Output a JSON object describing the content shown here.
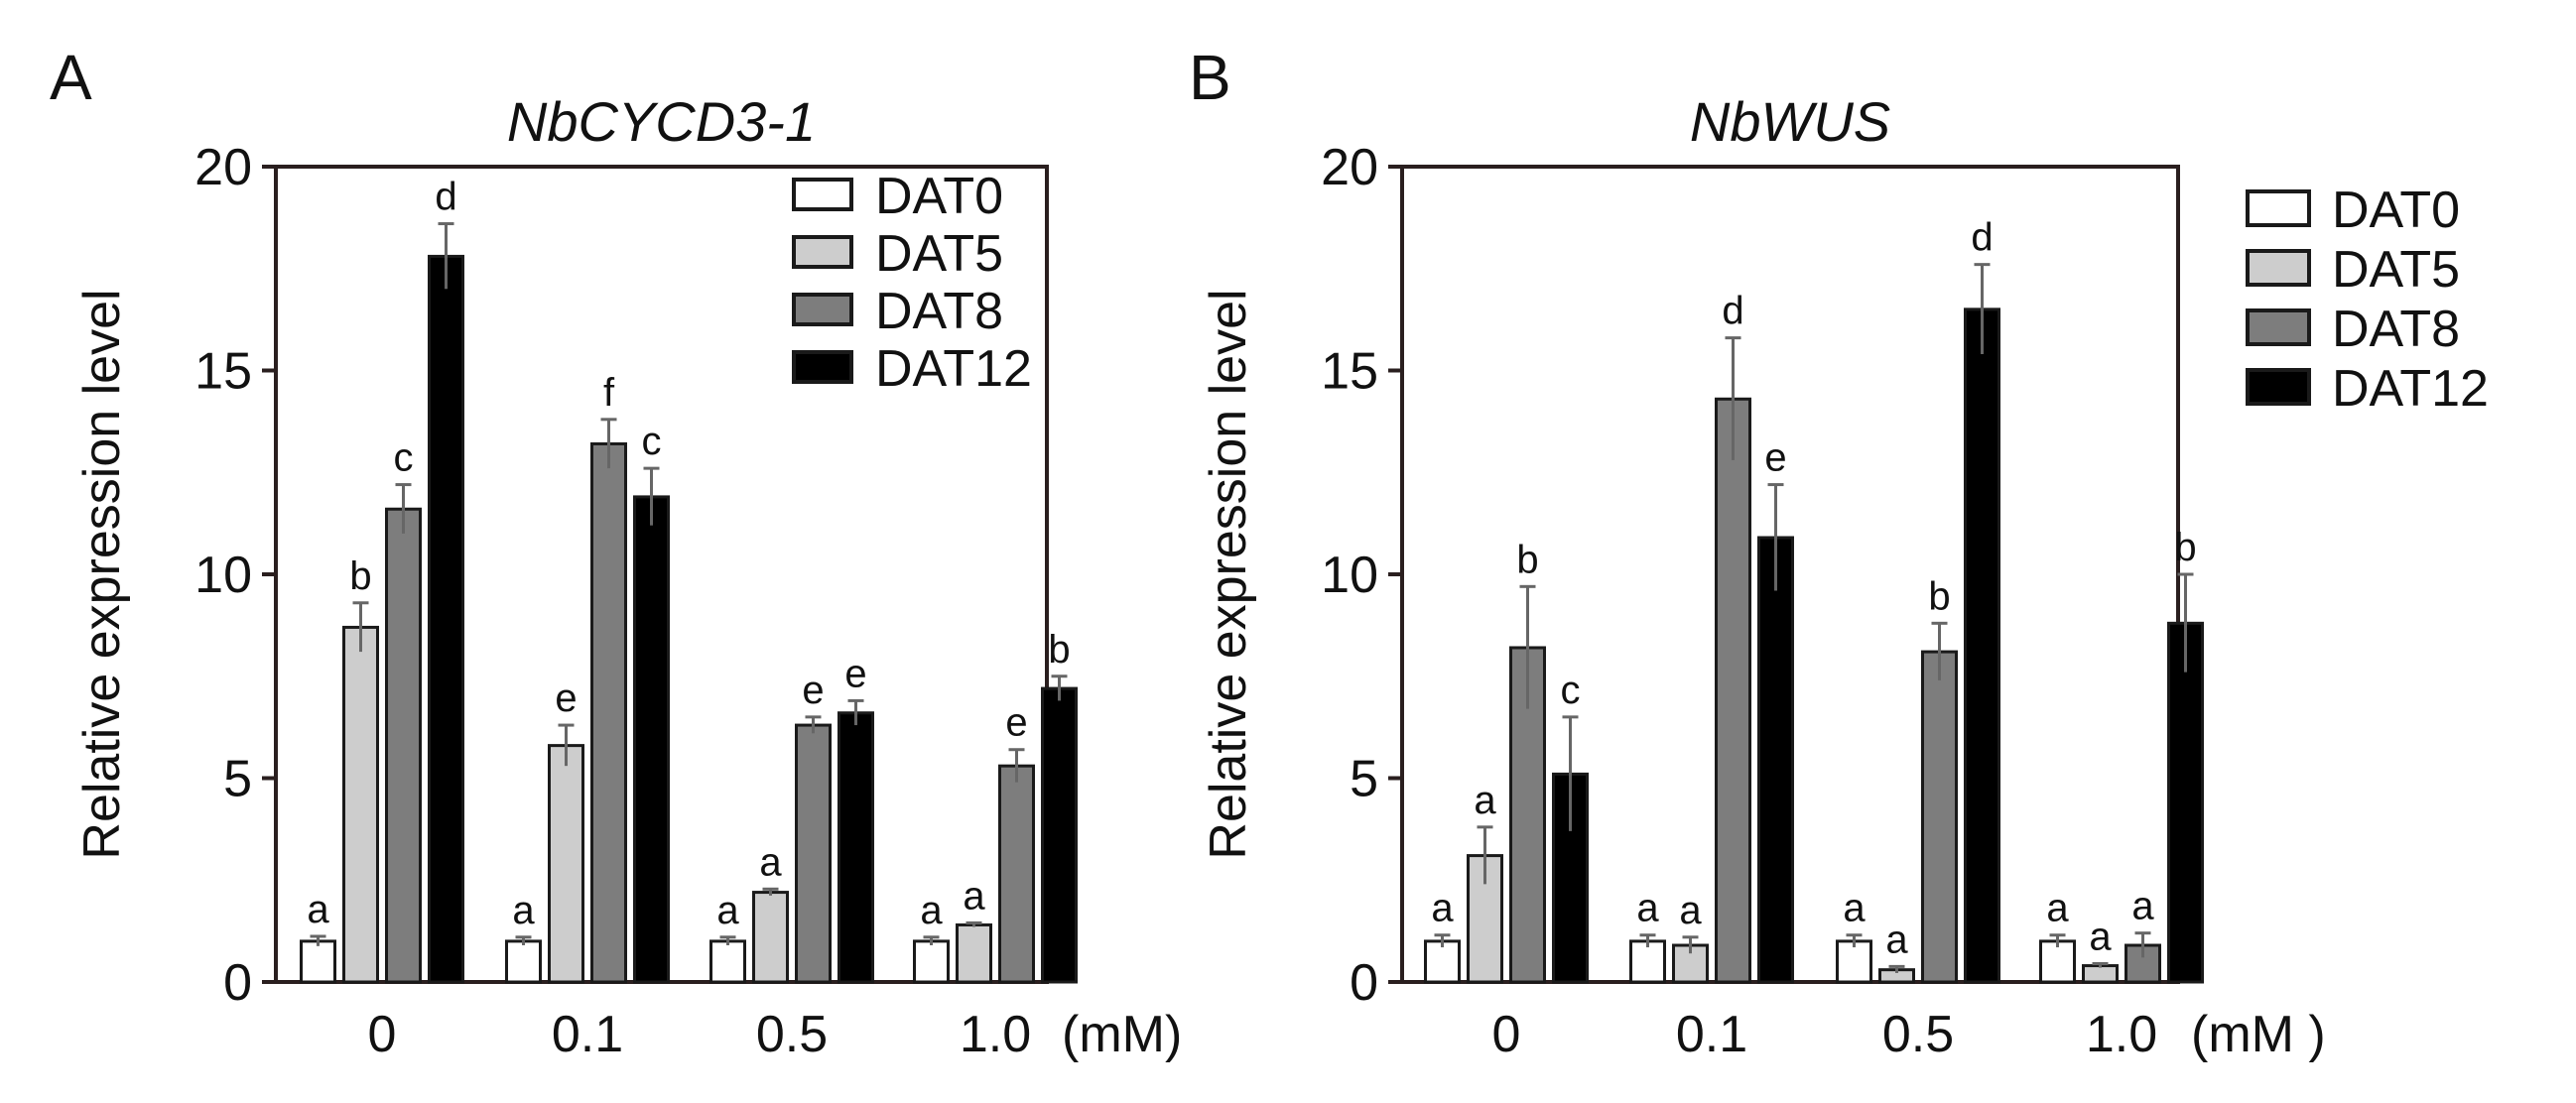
{
  "chart_data": [
    {
      "panel": "A",
      "type": "bar",
      "title": "NbCYCD3-1",
      "ylabel": "Relative expression level",
      "xunit": "(mM)",
      "ylim": [
        0,
        20
      ],
      "yticks": [
        "0",
        "5",
        "10",
        "15",
        "20"
      ],
      "categories": [
        "0",
        "0.1",
        "0.5",
        "1.0"
      ],
      "series": [
        {
          "name": "DAT0",
          "color": "#ffffff",
          "values": [
            1.0,
            1.0,
            1.0,
            1.0
          ],
          "errors": [
            0.12,
            0.1,
            0.1,
            0.1
          ],
          "letters": [
            "a",
            "a",
            "a",
            "a"
          ]
        },
        {
          "name": "DAT5",
          "color": "#cdcdcd",
          "values": [
            8.7,
            5.8,
            2.2,
            1.4
          ],
          "errors": [
            0.6,
            0.5,
            0.08,
            0.05
          ],
          "letters": [
            "b",
            "e",
            "a",
            "a"
          ]
        },
        {
          "name": "DAT8",
          "color": "#7d7d7d",
          "values": [
            11.6,
            13.2,
            6.3,
            5.3
          ],
          "errors": [
            0.6,
            0.6,
            0.2,
            0.4
          ],
          "letters": [
            "c",
            "f",
            "e",
            "e"
          ]
        },
        {
          "name": "DAT12",
          "color": "#000000",
          "values": [
            17.8,
            11.9,
            6.6,
            7.2
          ],
          "errors": [
            0.8,
            0.7,
            0.3,
            0.3
          ],
          "letters": [
            "d",
            "c",
            "e",
            "b"
          ]
        }
      ],
      "legend": "top-right inside"
    },
    {
      "panel": "B",
      "type": "bar",
      "title": "NbWUS",
      "ylabel": "Relative expression level",
      "xunit": "(mM )",
      "ylim": [
        0,
        20
      ],
      "yticks": [
        "0",
        "5",
        "10",
        "15",
        "20"
      ],
      "categories": [
        "0",
        "0.1",
        "0.5",
        "1.0"
      ],
      "series": [
        {
          "name": "DAT0",
          "color": "#ffffff",
          "values": [
            1.0,
            1.0,
            1.0,
            1.0
          ],
          "errors": [
            0.15,
            0.15,
            0.15,
            0.15
          ],
          "letters": [
            "a",
            "a",
            "a",
            "a"
          ]
        },
        {
          "name": "DAT5",
          "color": "#cdcdcd",
          "values": [
            3.1,
            0.9,
            0.3,
            0.4
          ],
          "errors": [
            0.7,
            0.2,
            0.08,
            0.05
          ],
          "letters": [
            "a",
            "a",
            "a",
            "a"
          ]
        },
        {
          "name": "DAT8",
          "color": "#7d7d7d",
          "values": [
            8.2,
            14.3,
            8.1,
            0.9
          ],
          "errors": [
            1.5,
            1.5,
            0.7,
            0.3
          ],
          "letters": [
            "b",
            "d",
            "b",
            "a"
          ]
        },
        {
          "name": "DAT12",
          "color": "#000000",
          "values": [
            5.1,
            10.9,
            16.5,
            8.8
          ],
          "errors": [
            1.4,
            1.3,
            1.1,
            1.2
          ],
          "letters": [
            "c",
            "e",
            "d",
            "b"
          ]
        }
      ],
      "legend": "right outside"
    }
  ]
}
